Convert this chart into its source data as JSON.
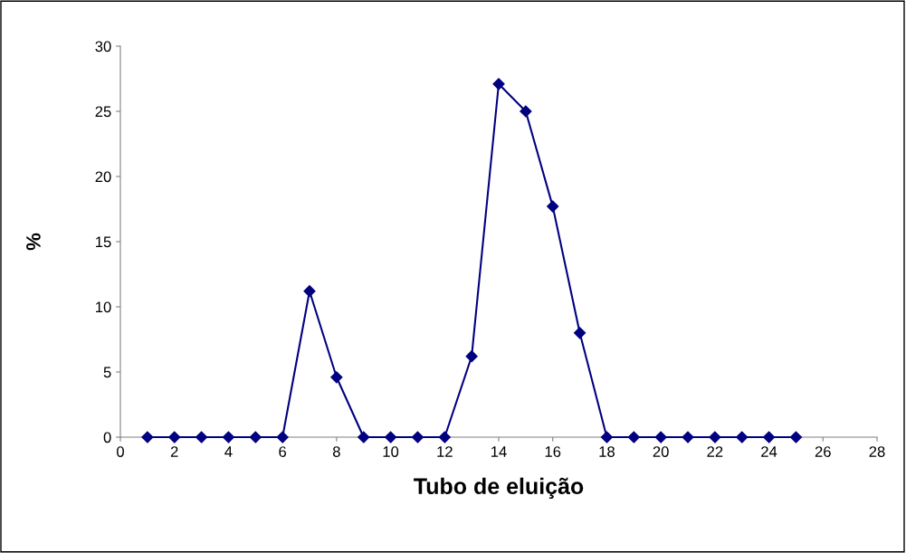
{
  "chart_data": {
    "type": "line",
    "xlabel": "Tubo de eluição",
    "ylabel": "%",
    "x": [
      1,
      2,
      3,
      4,
      5,
      6,
      7,
      8,
      9,
      10,
      11,
      12,
      13,
      14,
      15,
      16,
      17,
      18,
      19,
      20,
      21,
      22,
      23,
      24,
      25
    ],
    "series": [
      {
        "color": "#000080",
        "values": [
          0,
          0,
          0,
          0,
          0,
          0,
          11.2,
          4.6,
          0,
          0,
          0,
          0,
          6.2,
          27.1,
          25.0,
          17.7,
          8.0,
          0,
          0,
          0,
          0,
          0,
          0,
          0,
          0
        ]
      }
    ],
    "xlim": [
      0,
      28
    ],
    "xticks": [
      0,
      2,
      4,
      6,
      8,
      10,
      12,
      14,
      16,
      18,
      20,
      22,
      24,
      26,
      28
    ],
    "ylim": [
      0,
      30
    ],
    "yticks": [
      0,
      5,
      10,
      15,
      20,
      25,
      30
    ],
    "marker": "diamond",
    "line_style": "solid",
    "grid": false,
    "legend": false
  }
}
